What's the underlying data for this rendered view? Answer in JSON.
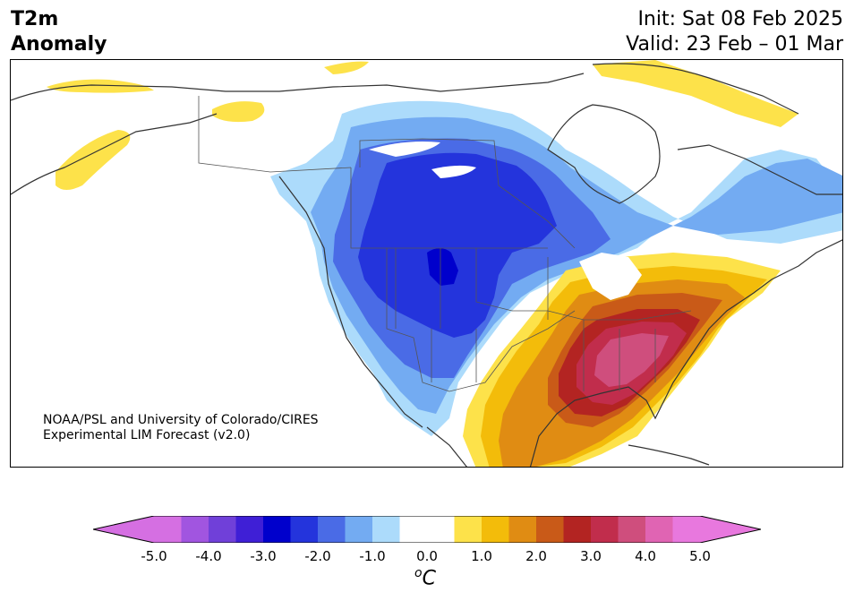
{
  "header": {
    "title_line1": "T2m",
    "title_line2": "Anomaly",
    "init": "Init: Sat 08 Feb 2025",
    "valid": "Valid: 23 Feb – 01 Mar"
  },
  "map": {
    "credit_line1": "NOAA/PSL and University of Colorado/CIRES",
    "credit_line2": "Experimental LIM Forecast (v2.0)"
  },
  "colorbar": {
    "tick_labels": [
      "-5.0",
      "-4.0",
      "-3.0",
      "-2.0",
      "-1.0",
      "0.0",
      "1.0",
      "2.0",
      "3.0",
      "4.0",
      "5.0"
    ],
    "units_base": "C",
    "units_sup": "o",
    "colors": [
      "#d56fe2",
      "#a155e0",
      "#7040d9",
      "#3f1fd6",
      "#0000cc",
      "#2434dc",
      "#4a6be6",
      "#73abf2",
      "#acdbfb",
      "#ffffff",
      "#ffffff",
      "#fde24a",
      "#f3bc0a",
      "#e08c13",
      "#c95a18",
      "#b32422",
      "#c12d4c",
      "#cf4e7d",
      "#e064b3",
      "#e878de"
    ],
    "under_color": "#d56fe2",
    "over_color": "#e878de"
  }
}
